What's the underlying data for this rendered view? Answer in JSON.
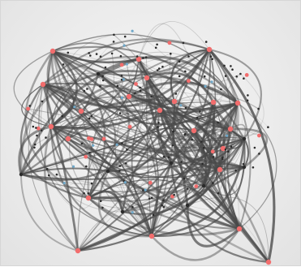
{
  "diagram": {
    "type": "network-graph",
    "colors": {
      "background": "#ececec",
      "edge": "#4a4a4a",
      "node_highlight": "#f26d6d",
      "node_default": "#2b2b2b",
      "node_accent": "#6fa8c9"
    }
  }
}
